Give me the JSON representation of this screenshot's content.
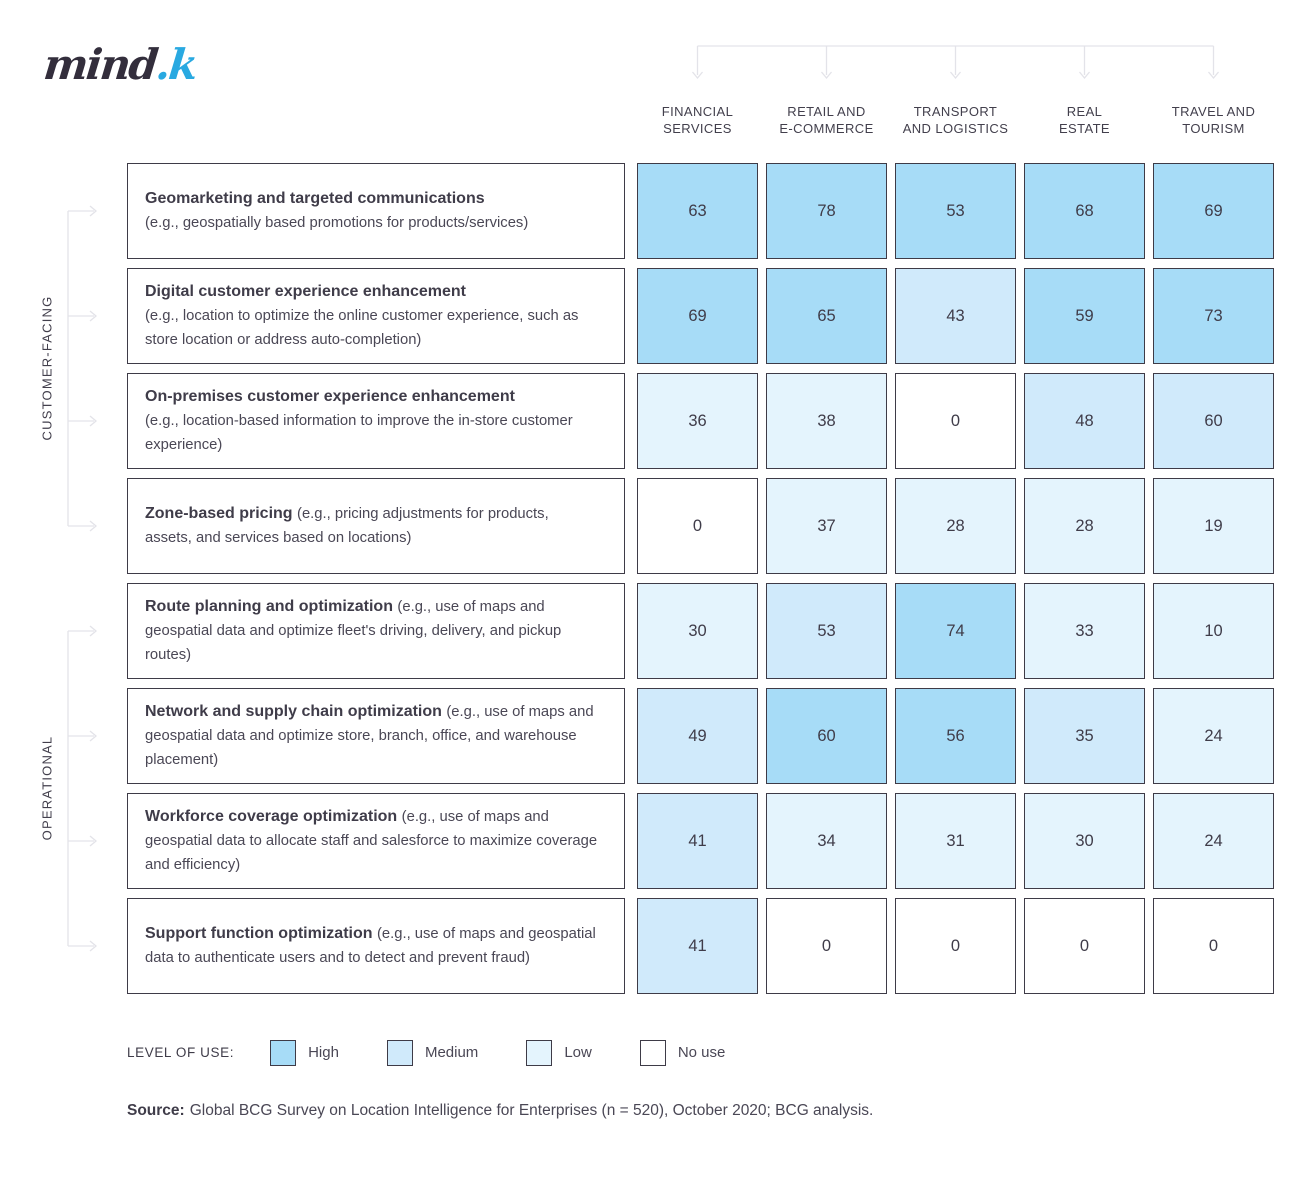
{
  "logo": {
    "mind": "mind",
    "k": ".k"
  },
  "chart_data": {
    "type": "heatmap",
    "title": "",
    "columns": [
      {
        "lines": [
          "FINANCIAL",
          "SERVICES"
        ]
      },
      {
        "lines": [
          "RETAIL AND",
          "E-COMMERCE"
        ]
      },
      {
        "lines": [
          "TRANSPORT",
          "AND LOGISTICS"
        ]
      },
      {
        "lines": [
          "REAL",
          "ESTATE"
        ]
      },
      {
        "lines": [
          "TRAVEL AND",
          "TOURISM"
        ]
      }
    ],
    "row_groups": [
      {
        "label": "CUSTOMER-FACING",
        "row_indexes": [
          0,
          1,
          2,
          3
        ]
      },
      {
        "label": "OPERATIONAL",
        "row_indexes": [
          4,
          5,
          6,
          7
        ]
      }
    ],
    "rows": [
      {
        "title": "Geomarketing and targeted communications",
        "description": "(e.g., geospatially based promotions for products/services)",
        "title_block": true,
        "values": [
          63,
          78,
          53,
          68,
          69
        ],
        "levels": [
          "high",
          "high",
          "high",
          "high",
          "high"
        ]
      },
      {
        "title": "Digital customer experience enhancement",
        "description": "(e.g., location to optimize the online customer experience, such as store location or address auto-completion)",
        "title_block": true,
        "values": [
          69,
          65,
          43,
          59,
          73
        ],
        "levels": [
          "high",
          "high",
          "medium",
          "high",
          "high"
        ]
      },
      {
        "title": "On-premises customer experience enhancement",
        "description": "(e.g., location-based information to improve the in-store customer experience)",
        "title_block": true,
        "values": [
          36,
          38,
          0,
          48,
          60
        ],
        "levels": [
          "low",
          "low",
          "none",
          "medium",
          "medium"
        ]
      },
      {
        "title": "Zone-based pricing",
        "description": "(e.g., pricing adjustments for products, assets, and services based on locations)",
        "title_block": false,
        "values": [
          0,
          37,
          28,
          28,
          19
        ],
        "levels": [
          "none",
          "low",
          "low",
          "low",
          "low"
        ]
      },
      {
        "title": "Route planning and optimization",
        "description": "(e.g., use of maps and geospatial data and optimize fleet's driving, delivery, and pickup routes)",
        "title_block": false,
        "values": [
          30,
          53,
          74,
          33,
          10
        ],
        "levels": [
          "low",
          "medium",
          "high",
          "low",
          "low"
        ]
      },
      {
        "title": "Network and supply chain optimization",
        "description": "(e.g., use of maps and geospatial data and optimize store, branch, office, and warehouse placement)",
        "title_block": false,
        "values": [
          49,
          60,
          56,
          35,
          24
        ],
        "levels": [
          "medium",
          "high",
          "high",
          "medium",
          "low"
        ]
      },
      {
        "title": "Workforce coverage optimization",
        "description": "(e.g., use of maps and geospatial data to allocate staff and salesforce to maximize coverage and efficiency)",
        "title_block": false,
        "values": [
          41,
          34,
          31,
          30,
          24
        ],
        "levels": [
          "medium",
          "low",
          "low",
          "low",
          "low"
        ]
      },
      {
        "title": "Support function optimization",
        "description": "(e.g., use of maps and geospatial data to authenticate users and to detect and prevent fraud)",
        "title_block": false,
        "values": [
          41,
          0,
          0,
          0,
          0
        ],
        "levels": [
          "medium",
          "none",
          "none",
          "none",
          "none"
        ]
      }
    ],
    "level_colors": {
      "high": "#a7dcf7",
      "medium": "#d0eafb",
      "low": "#e4f4fd",
      "none": "#ffffff"
    },
    "legend": {
      "label": "LEVEL OF USE:",
      "items": [
        {
          "label": "High",
          "level": "high"
        },
        {
          "label": "Medium",
          "level": "medium"
        },
        {
          "label": "Low",
          "level": "low"
        },
        {
          "label": "No use",
          "level": "none"
        }
      ],
      "position": "bottom-left"
    }
  },
  "source": {
    "prefix": "Source:",
    "text": "Global BCG Survey on Location Intelligence for Enterprises (n = 520), October 2020; BCG analysis."
  }
}
